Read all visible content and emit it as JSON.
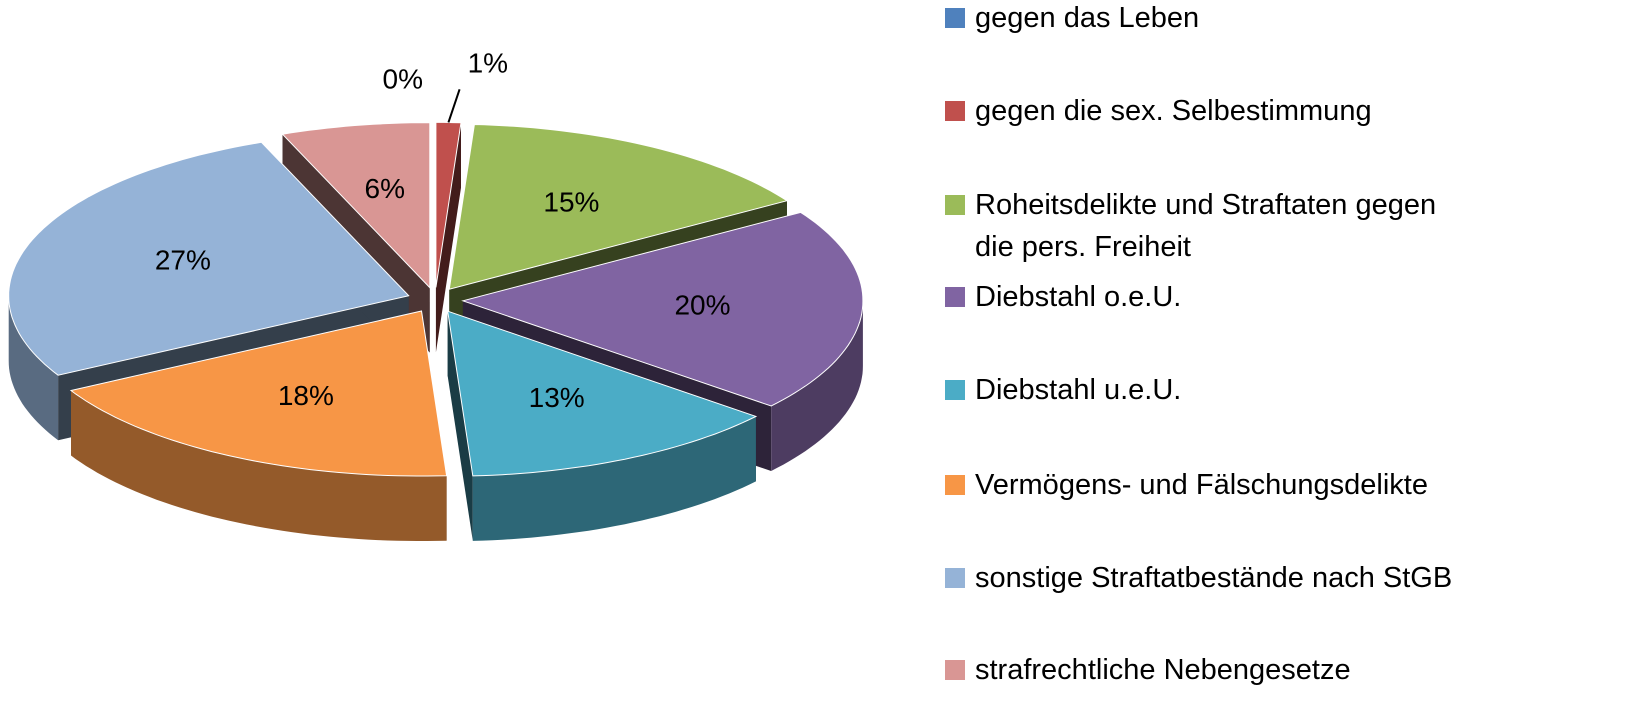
{
  "chart_data": {
    "type": "pie",
    "categories": [
      "gegen das Leben",
      "gegen die sex. Selbestimmung",
      "Roheitsdelikte und Straftaten gegen die pers. Freiheit",
      "Diebstahl o.e.U.",
      "Diebstahl u.e.U.",
      "Vermögens- und Fälschungsdelikte",
      "sonstige Straftatbestände nach StGB",
      "strafrechtliche Nebengesetze"
    ],
    "values": [
      0,
      1,
      15,
      20,
      13,
      18,
      27,
      6
    ],
    "value_labels": [
      "0%",
      "1%",
      "15%",
      "20%",
      "13%",
      "18%",
      "27%",
      "6%"
    ],
    "colors": [
      "#4f81bd",
      "#c0504d",
      "#9bbb59",
      "#8064a2",
      "#4bacc6",
      "#f79646",
      "#95b3d7",
      "#d99694"
    ],
    "legend": "right"
  }
}
